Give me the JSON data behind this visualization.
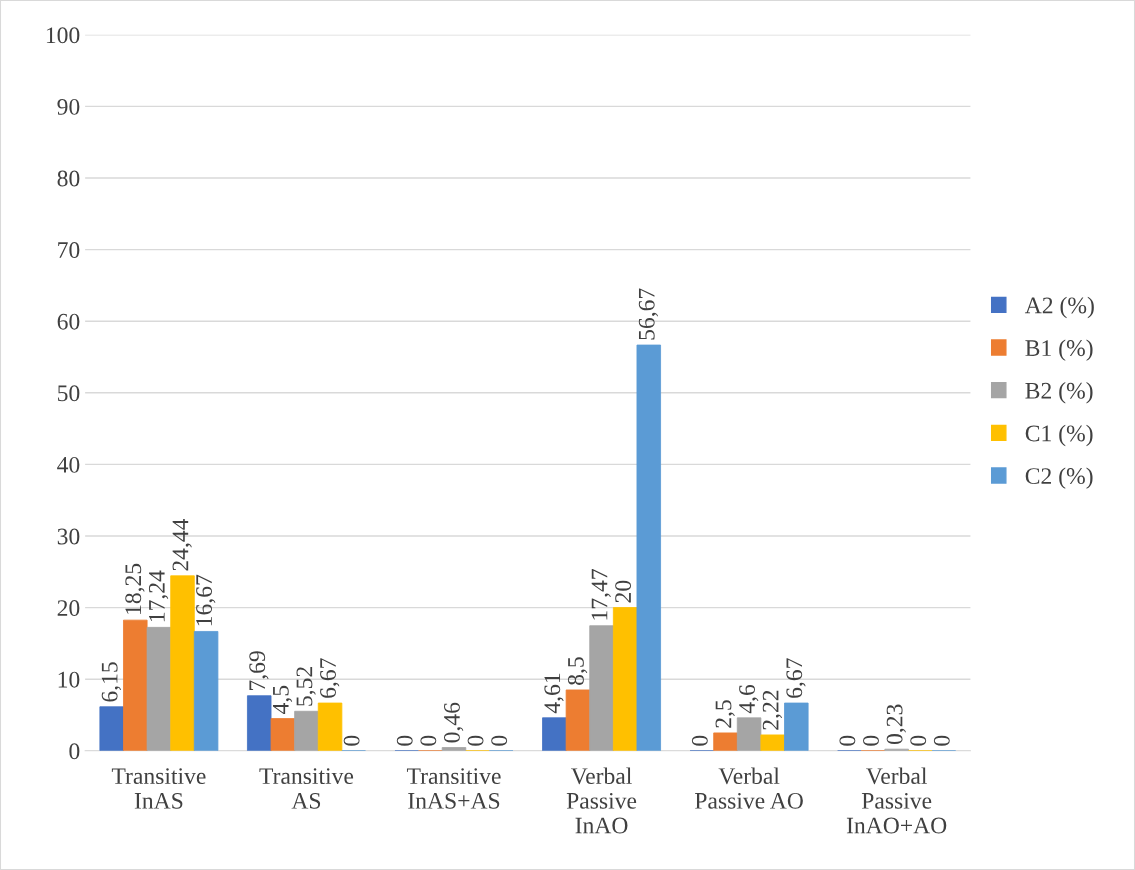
{
  "chart_data": {
    "type": "bar",
    "categories": [
      "Transitive\nInAS",
      "Transitive\nAS",
      "Transitive\nInAS+AS",
      "Verbal\nPassive\nInAO",
      "Verbal\nPassive AO",
      "Verbal\nPassive\nInAO+AO"
    ],
    "series": [
      {
        "name": "A2 (%)",
        "color": "#4472c4",
        "values": [
          6.15,
          7.69,
          0,
          4.61,
          0,
          0
        ],
        "value_labels": [
          "6,15",
          "7,69",
          "0",
          "4,61",
          "0",
          "0"
        ]
      },
      {
        "name": "B1 (%)",
        "color": "#ed7d31",
        "values": [
          18.25,
          4.5,
          0,
          8.5,
          2.5,
          0
        ],
        "value_labels": [
          "18,25",
          "4,5",
          "0",
          "8,5",
          "2,5",
          "0"
        ]
      },
      {
        "name": "B2 (%)",
        "color": "#a5a5a5",
        "values": [
          17.24,
          5.52,
          0.46,
          17.47,
          4.6,
          0.23
        ],
        "value_labels": [
          "17,24",
          "5,52",
          "0,46",
          "17,47",
          "4,6",
          "0,23"
        ]
      },
      {
        "name": "C1 (%)",
        "color": "#ffc000",
        "values": [
          24.44,
          6.67,
          0,
          20,
          2.22,
          0
        ],
        "value_labels": [
          "24,44",
          "6,67",
          "0",
          "20",
          "2,22",
          "0"
        ]
      },
      {
        "name": "C2 (%)",
        "color": "#5b9bd5",
        "values": [
          16.67,
          0,
          0,
          56.67,
          6.67,
          0
        ],
        "value_labels": [
          "16,67",
          "0",
          "0",
          "56,67",
          "6,67",
          "0"
        ]
      }
    ],
    "ylim": [
      0,
      100
    ],
    "yticks": [
      0,
      10,
      20,
      30,
      40,
      50,
      60,
      70,
      80,
      90,
      100
    ],
    "grid": "y",
    "legend": "right"
  }
}
